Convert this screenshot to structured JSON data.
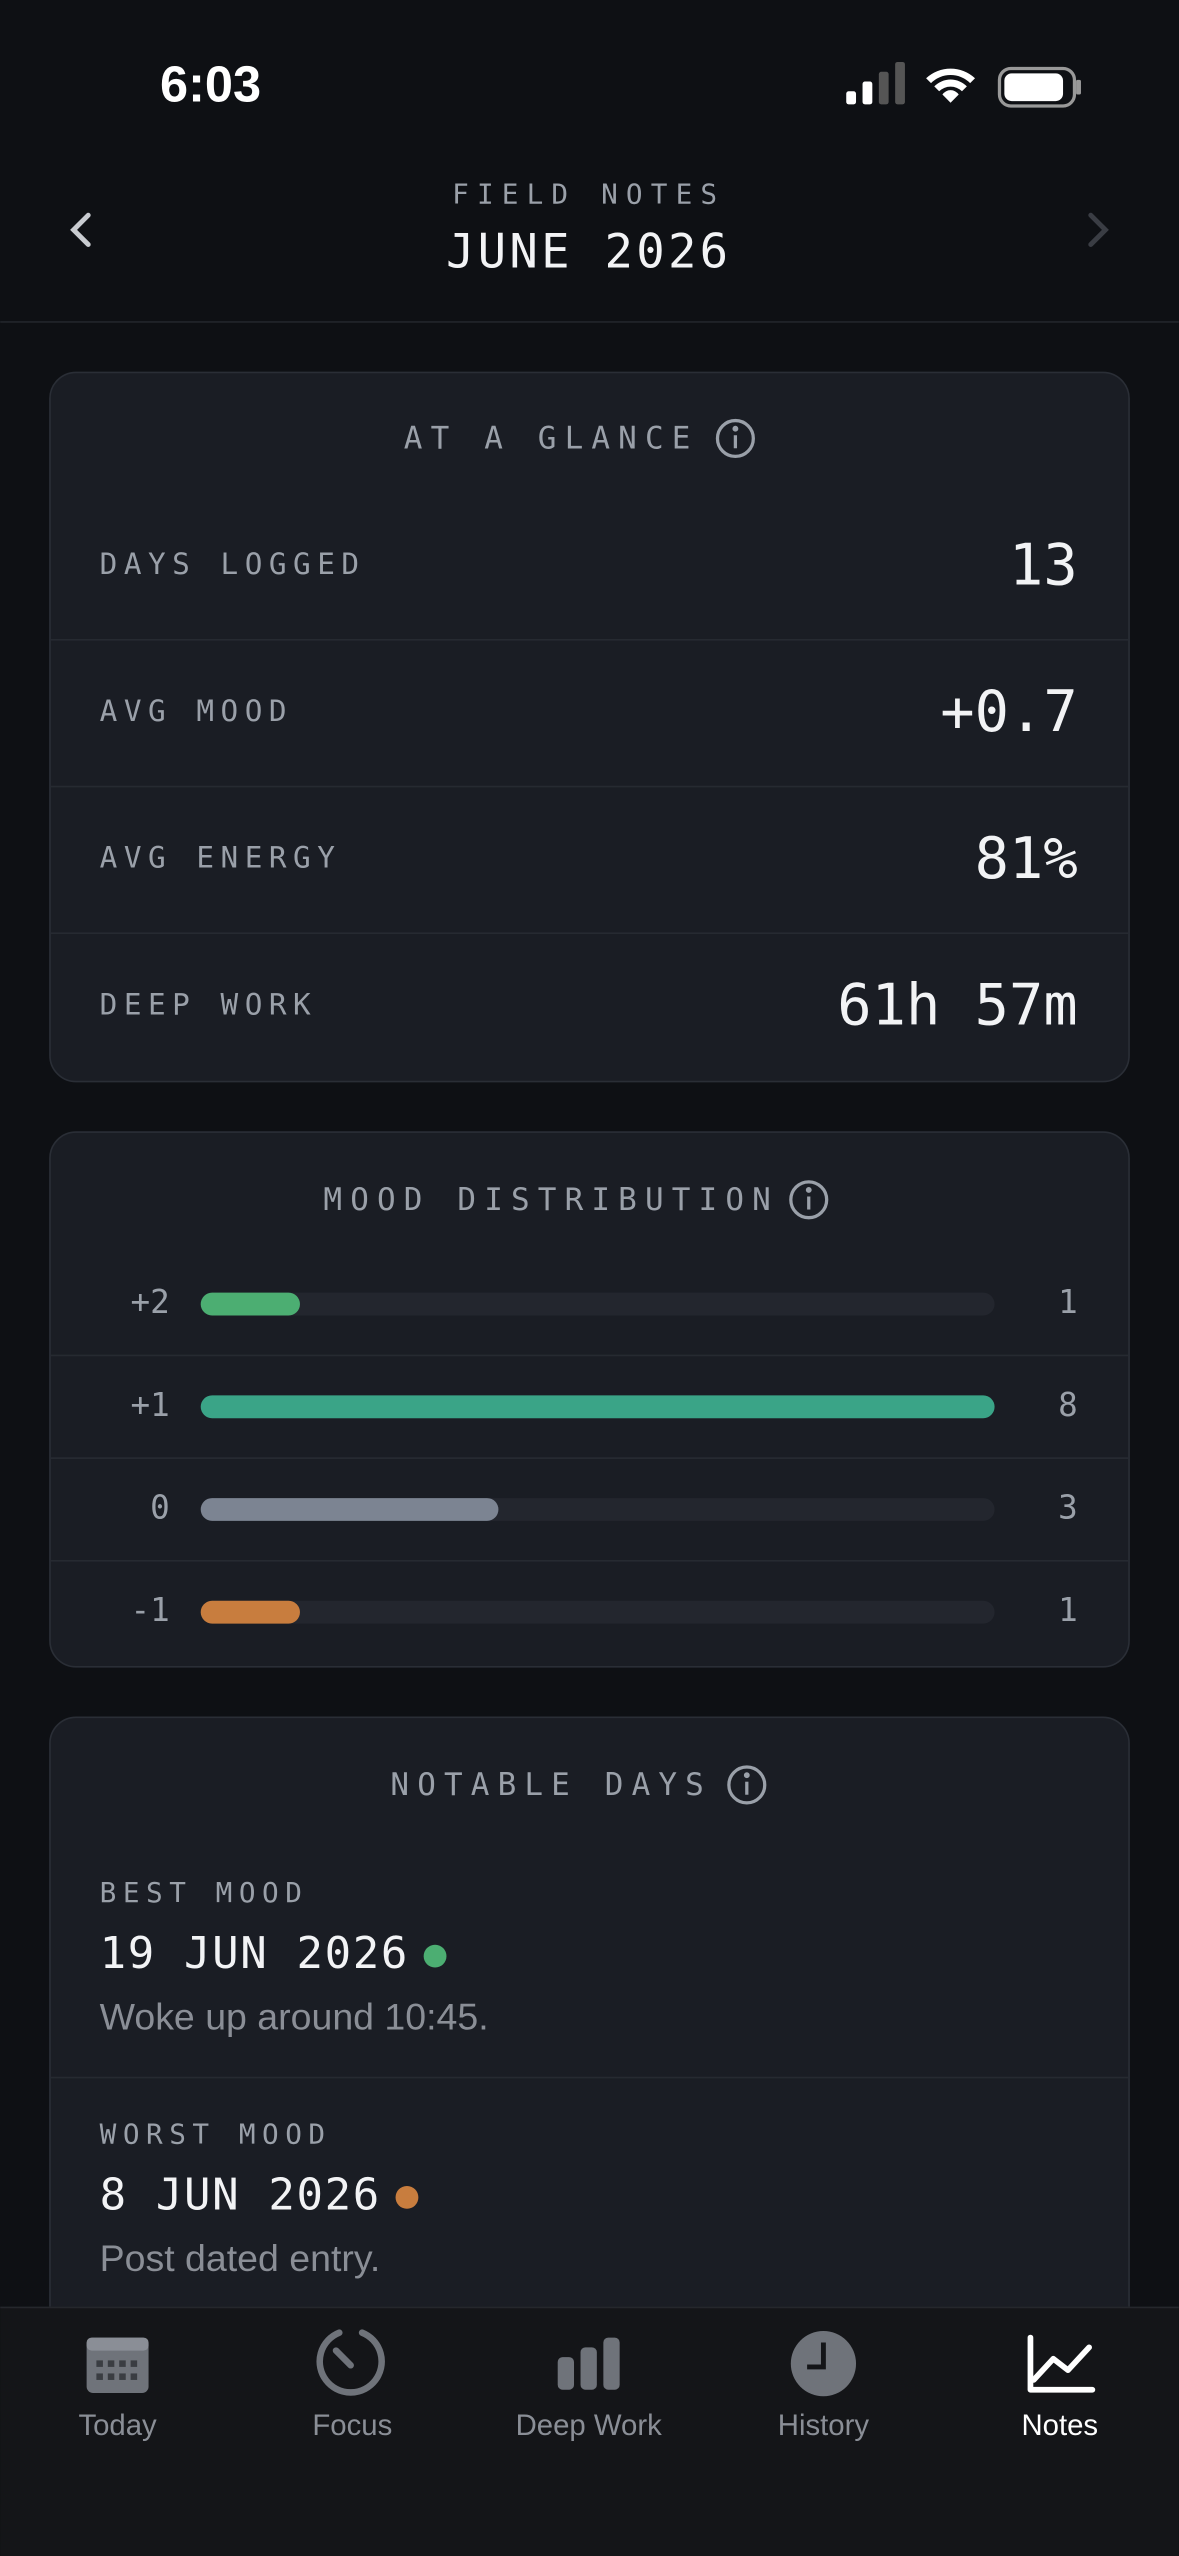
{
  "status_bar": {
    "time": "6:03"
  },
  "header": {
    "eyebrow": "FIELD NOTES",
    "title": "JUNE 2026"
  },
  "glance": {
    "title": "AT A GLANCE",
    "rows": [
      {
        "label": "DAYS LOGGED",
        "value": "13"
      },
      {
        "label": "AVG MOOD",
        "value": "+0.7"
      },
      {
        "label": "AVG ENERGY",
        "value": "81%"
      },
      {
        "label": "DEEP WORK",
        "value": "61h 57m"
      }
    ]
  },
  "mood_distribution": {
    "title": "MOOD DISTRIBUTION",
    "rows": [
      {
        "label": "+2",
        "count": 1,
        "color": "#4cae72"
      },
      {
        "label": "+1",
        "count": 8,
        "color": "#3aa487"
      },
      {
        "label": "0",
        "count": 3,
        "color": "#7c8492"
      },
      {
        "label": "-1",
        "count": 1,
        "color": "#c87d3e"
      }
    ]
  },
  "notable": {
    "title": "NOTABLE DAYS",
    "items": [
      {
        "label": "BEST MOOD",
        "date": "19 JUN 2026",
        "note": "Woke up around 10:45.",
        "color": "#4cae72"
      },
      {
        "label": "WORST MOOD",
        "date": "8 JUN 2026",
        "note": "Post dated entry.",
        "color": "#c87d3e"
      }
    ]
  },
  "tab_bar": {
    "tabs": [
      {
        "label": "Today",
        "active": false
      },
      {
        "label": "Focus",
        "active": false
      },
      {
        "label": "Deep Work",
        "active": false
      },
      {
        "label": "History",
        "active": false
      },
      {
        "label": "Notes",
        "active": true
      }
    ]
  }
}
